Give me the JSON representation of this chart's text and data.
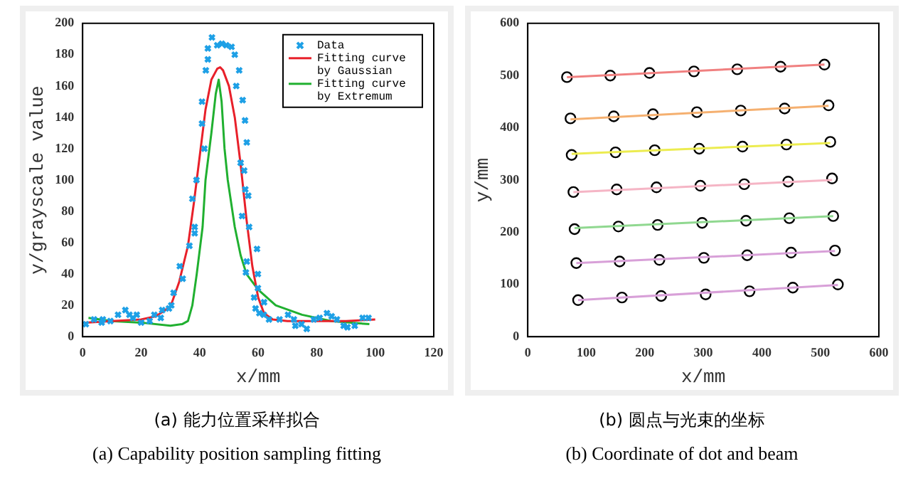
{
  "chart_data": [
    {
      "type": "scatter",
      "xlabel": "x/mm",
      "ylabel": "y/grayscale value",
      "xlim": [
        0,
        120
      ],
      "xticks": [
        0,
        20,
        40,
        60,
        80,
        100,
        120
      ],
      "ylim": [
        0,
        200
      ],
      "yticks": [
        0,
        20,
        40,
        60,
        80,
        100,
        120,
        140,
        160,
        180,
        200
      ],
      "grid": false,
      "legend": "top right",
      "annotations": [
        "(a)  能力位置采样拟合",
        "(a) Capability position sampling fitting"
      ],
      "series": [
        {
          "name": "Data",
          "type": "scatter",
          "marker": "cross",
          "color": "#1ea0e6",
          "x": [
            1.1,
            3.9,
            6.5,
            6.9,
            9.5,
            12.1,
            14.6,
            16,
            17.2,
            18.5,
            20,
            22.9,
            24.5,
            26.7,
            27.2,
            29.5,
            30.3,
            31.1,
            33.2,
            34.2,
            36.5,
            37.5,
            38.3,
            38.3,
            38.9,
            40.8,
            40.8,
            41.6,
            42.1,
            42.8,
            42.8,
            44.2,
            46,
            47.6,
            49.1,
            50.9,
            52,
            52.5,
            53.5,
            54,
            54.7,
            55.2,
            55.5,
            55.6,
            56.1,
            56.6,
            54.5,
            56.9,
            56.1,
            55.8,
            59.6,
            59.9,
            59.9,
            58.6,
            59.1,
            60.4,
            62,
            61.9,
            63.7,
            67.3,
            70.2,
            72.2,
            72.7,
            74.8,
            76.6,
            79,
            81,
            83.5,
            85.1,
            86.9,
            89.2,
            90.5,
            93,
            95.7,
            97.7
          ],
          "values": [
            8,
            11,
            9,
            11,
            10,
            14,
            17,
            14,
            12,
            14,
            9,
            10,
            14,
            12,
            17,
            18,
            20,
            28,
            45,
            37,
            58,
            88,
            66,
            70,
            100,
            136,
            150,
            120,
            170,
            177,
            184,
            191,
            186,
            187,
            186,
            185,
            180,
            160,
            170,
            111,
            151,
            106,
            138,
            94,
            124,
            90,
            77,
            70,
            48,
            41,
            56,
            40,
            31,
            25,
            18,
            15,
            22,
            14,
            11,
            11,
            14,
            11,
            7,
            8,
            5,
            11,
            12,
            15,
            13,
            11,
            7,
            6,
            7,
            12,
            12
          ]
        },
        {
          "name": "Fitting curve by Gaussian",
          "type": "line",
          "marker": "none",
          "color": "#e8202a",
          "x": [
            1,
            10,
            20,
            25,
            30,
            33,
            36,
            38,
            40,
            42,
            44,
            46,
            47,
            48,
            50,
            52,
            54,
            56,
            58,
            60,
            62,
            65,
            70,
            80,
            90,
            100
          ],
          "values": [
            9,
            10,
            11,
            13,
            19,
            35,
            58,
            85,
            115,
            145,
            164,
            171,
            172,
            170,
            160,
            140,
            110,
            75,
            45,
            25,
            15,
            11,
            10,
            10,
            10,
            11
          ]
        },
        {
          "name": "Fitting curve by Extremum",
          "type": "line",
          "marker": "none",
          "color": "#20b030",
          "x": [
            2,
            10,
            20,
            30,
            34,
            36,
            37.5,
            39,
            41,
            42,
            44,
            45.5,
            46.5,
            47.5,
            48.5,
            49.6,
            52,
            54,
            56,
            60,
            66,
            75,
            85,
            98
          ],
          "values": [
            12,
            10,
            9,
            7,
            8,
            10,
            20,
            40,
            70,
            100,
            130,
            155,
            164,
            150,
            120,
            100,
            70,
            52,
            40,
            30,
            20,
            14,
            10,
            8
          ]
        }
      ]
    },
    {
      "type": "scatter",
      "xlabel": "x/mm",
      "ylabel": "y/mm",
      "xlim": [
        0,
        600
      ],
      "xticks": [
        0,
        100,
        200,
        300,
        400,
        500,
        600
      ],
      "ylim": [
        0,
        600
      ],
      "yticks": [
        0,
        100,
        200,
        300,
        400,
        500,
        600
      ],
      "grid": false,
      "legend": false,
      "annotations": [
        "(b)  圆点与光束的坐标",
        "(b) Coordinate of dot and beam"
      ],
      "series": [
        {
          "type": "line",
          "marker": "none",
          "color": "#f08080",
          "x": [
            67,
            507
          ],
          "values": [
            497,
            521
          ]
        },
        {
          "type": "line",
          "marker": "none",
          "color": "#f5b070",
          "x": [
            73,
            514
          ],
          "values": [
            416,
            442
          ]
        },
        {
          "type": "line",
          "marker": "none",
          "color": "#ecec50",
          "x": [
            75,
            517
          ],
          "values": [
            350,
            371
          ]
        },
        {
          "type": "line",
          "marker": "none",
          "color": "#f5b5c5",
          "x": [
            78,
            520
          ],
          "values": [
            277,
            300
          ]
        },
        {
          "type": "line",
          "marker": "none",
          "color": "#90d890",
          "x": [
            80,
            522
          ],
          "values": [
            208,
            231
          ]
        },
        {
          "type": "line",
          "marker": "none",
          "color": "#d8a0d8",
          "x": [
            83,
            525
          ],
          "values": [
            141,
            164
          ]
        },
        {
          "type": "line",
          "marker": "none",
          "color": "#d8a0d8",
          "x": [
            86,
            530
          ],
          "values": [
            70,
            99
          ]
        },
        {
          "type": "scatter",
          "marker": "circle",
          "color": "#000000",
          "x": [
            67,
            141,
            208,
            284,
            358,
            432,
            507,
            73,
            147,
            214,
            289,
            364,
            439,
            514,
            75,
            150,
            217,
            293,
            367,
            442,
            517,
            78,
            152,
            220,
            295,
            370,
            445,
            520,
            80,
            155,
            222,
            298,
            373,
            447,
            522,
            83,
            157,
            225,
            301,
            375,
            450,
            525,
            86,
            161,
            228,
            304,
            379,
            453,
            530
          ],
          "values": [
            497,
            500,
            505,
            508,
            512,
            517,
            521,
            418,
            422,
            426,
            430,
            433,
            437,
            443,
            348,
            353,
            357,
            360,
            364,
            368,
            373,
            277,
            282,
            286,
            289,
            292,
            297,
            303,
            206,
            211,
            214,
            218,
            222,
            227,
            231,
            141,
            144,
            147,
            151,
            156,
            161,
            165,
            70,
            75,
            78,
            81,
            87,
            94,
            100
          ]
        }
      ]
    }
  ]
}
